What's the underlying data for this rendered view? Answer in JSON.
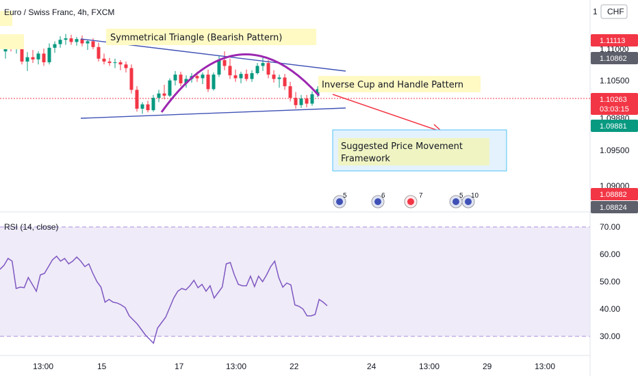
{
  "header": {
    "symbol_title": "Euro / Swiss Franc, 4h, FXCM"
  },
  "currency_button": "CHF",
  "annotations": {
    "triangle": "Symmetrical Triangle (Bearish Pattern)",
    "cup": "Inverse Cup and Handle Pattern",
    "suggested_line1": "Suggested Price Movement",
    "suggested_line2": "Framework"
  },
  "price_axis": {
    "ticks": [
      "1.10500",
      "1.09500"
    ],
    "clipped_labels": [
      "1.11000",
      "1.09000"
    ],
    "tags": [
      {
        "label": "1.11113",
        "color": "#f23645"
      },
      {
        "label": "1.10862",
        "color": "#5d606b"
      },
      {
        "label": "1.10263",
        "sub": "03:03:15",
        "color": "#f23645"
      },
      {
        "label": "1.09881",
        "color": "#089981"
      },
      {
        "label": "1.08882",
        "color": "#f23645"
      },
      {
        "label": "1.08824",
        "color": "#5d606b"
      }
    ]
  },
  "rsi": {
    "title": "RSI (14, close)",
    "ticks": [
      "70.00",
      "60.00",
      "50.00",
      "40.00",
      "30.00"
    ]
  },
  "time_axis": {
    "labels": [
      "13:00",
      "15",
      "17",
      "13:00",
      "22",
      "24",
      "13:00",
      "29",
      "13:00"
    ]
  },
  "events": [
    "5",
    "6",
    "7",
    "5",
    "10"
  ],
  "colors": {
    "up": "#089981",
    "down": "#f23645",
    "rsi_line": "#7e57c2",
    "pattern_line": "#3f51b5",
    "cup": "#9c27b0",
    "arrow": "#f23645"
  },
  "chart_data": {
    "type": "candlestick",
    "title": "Euro / Swiss Franc, 4h, FXCM",
    "ylim": [
      1.0885,
      1.113
    ],
    "candles": [
      {
        "o": 1.1078,
        "h": 1.1093,
        "l": 1.1068,
        "c": 1.1087
      },
      {
        "o": 1.1087,
        "h": 1.1097,
        "l": 1.1078,
        "c": 1.1082
      },
      {
        "o": 1.1082,
        "h": 1.1093,
        "l": 1.1075,
        "c": 1.1089
      },
      {
        "o": 1.1089,
        "h": 1.1096,
        "l": 1.106,
        "c": 1.1064
      },
      {
        "o": 1.1064,
        "h": 1.1077,
        "l": 1.1051,
        "c": 1.107
      },
      {
        "o": 1.107,
        "h": 1.108,
        "l": 1.1062,
        "c": 1.1067
      },
      {
        "o": 1.1067,
        "h": 1.1078,
        "l": 1.106,
        "c": 1.1075
      },
      {
        "o": 1.1075,
        "h": 1.1082,
        "l": 1.1058,
        "c": 1.1063
      },
      {
        "o": 1.1063,
        "h": 1.1089,
        "l": 1.106,
        "c": 1.1083
      },
      {
        "o": 1.1083,
        "h": 1.1092,
        "l": 1.1076,
        "c": 1.1088
      },
      {
        "o": 1.1088,
        "h": 1.1099,
        "l": 1.1083,
        "c": 1.1094
      },
      {
        "o": 1.1094,
        "h": 1.1102,
        "l": 1.1087,
        "c": 1.1096
      },
      {
        "o": 1.1096,
        "h": 1.1101,
        "l": 1.1087,
        "c": 1.1091
      },
      {
        "o": 1.1091,
        "h": 1.1098,
        "l": 1.1086,
        "c": 1.1095
      },
      {
        "o": 1.1095,
        "h": 1.11,
        "l": 1.1085,
        "c": 1.1089
      },
      {
        "o": 1.1089,
        "h": 1.1094,
        "l": 1.108,
        "c": 1.1092
      },
      {
        "o": 1.1092,
        "h": 1.1096,
        "l": 1.1081,
        "c": 1.1084
      },
      {
        "o": 1.1084,
        "h": 1.109,
        "l": 1.1064,
        "c": 1.1068
      },
      {
        "o": 1.1068,
        "h": 1.1075,
        "l": 1.106,
        "c": 1.1064
      },
      {
        "o": 1.1064,
        "h": 1.1069,
        "l": 1.1058,
        "c": 1.1062
      },
      {
        "o": 1.1062,
        "h": 1.1068,
        "l": 1.1055,
        "c": 1.1063
      },
      {
        "o": 1.1063,
        "h": 1.1066,
        "l": 1.1052,
        "c": 1.106
      },
      {
        "o": 1.106,
        "h": 1.1064,
        "l": 1.1049,
        "c": 1.1055
      },
      {
        "o": 1.1055,
        "h": 1.106,
        "l": 1.102,
        "c": 1.1025
      },
      {
        "o": 1.1025,
        "h": 1.103,
        "l": 1.0995,
        "c": 1.0999
      },
      {
        "o": 1.0999,
        "h": 1.1008,
        "l": 1.0992,
        "c": 1.1005
      },
      {
        "o": 1.1005,
        "h": 1.101,
        "l": 1.0994,
        "c": 1.0997
      },
      {
        "o": 1.0997,
        "h": 1.1018,
        "l": 1.0995,
        "c": 1.1014
      },
      {
        "o": 1.1014,
        "h": 1.1025,
        "l": 1.1008,
        "c": 1.102
      },
      {
        "o": 1.102,
        "h": 1.1032,
        "l": 1.1012,
        "c": 1.1017
      },
      {
        "o": 1.1017,
        "h": 1.1041,
        "l": 1.1015,
        "c": 1.1038
      },
      {
        "o": 1.1038,
        "h": 1.1051,
        "l": 1.1031,
        "c": 1.1046
      },
      {
        "o": 1.1046,
        "h": 1.105,
        "l": 1.103,
        "c": 1.1034
      },
      {
        "o": 1.1034,
        "h": 1.1045,
        "l": 1.1028,
        "c": 1.104
      },
      {
        "o": 1.104,
        "h": 1.1048,
        "l": 1.1035,
        "c": 1.1044
      },
      {
        "o": 1.1044,
        "h": 1.105,
        "l": 1.1036,
        "c": 1.1041
      },
      {
        "o": 1.1041,
        "h": 1.1049,
        "l": 1.1033,
        "c": 1.1046
      },
      {
        "o": 1.1046,
        "h": 1.1053,
        "l": 1.1022,
        "c": 1.1026
      },
      {
        "o": 1.1026,
        "h": 1.1049,
        "l": 1.1024,
        "c": 1.1046
      },
      {
        "o": 1.1046,
        "h": 1.1072,
        "l": 1.1043,
        "c": 1.1066
      },
      {
        "o": 1.1066,
        "h": 1.1078,
        "l": 1.1052,
        "c": 1.1058
      },
      {
        "o": 1.1058,
        "h": 1.1068,
        "l": 1.104,
        "c": 1.1045
      },
      {
        "o": 1.1045,
        "h": 1.1053,
        "l": 1.1036,
        "c": 1.1041
      },
      {
        "o": 1.1041,
        "h": 1.105,
        "l": 1.1034,
        "c": 1.1047
      },
      {
        "o": 1.1047,
        "h": 1.1053,
        "l": 1.1037,
        "c": 1.104
      },
      {
        "o": 1.104,
        "h": 1.1052,
        "l": 1.1036,
        "c": 1.1048
      },
      {
        "o": 1.1048,
        "h": 1.1062,
        "l": 1.1046,
        "c": 1.1058
      },
      {
        "o": 1.1058,
        "h": 1.107,
        "l": 1.1051,
        "c": 1.1062
      },
      {
        "o": 1.1062,
        "h": 1.1066,
        "l": 1.1041,
        "c": 1.1046
      },
      {
        "o": 1.1046,
        "h": 1.1052,
        "l": 1.1035,
        "c": 1.104
      },
      {
        "o": 1.104,
        "h": 1.1046,
        "l": 1.1028,
        "c": 1.1042
      },
      {
        "o": 1.1042,
        "h": 1.1047,
        "l": 1.1025,
        "c": 1.103
      },
      {
        "o": 1.103,
        "h": 1.1036,
        "l": 1.1009,
        "c": 1.1014
      },
      {
        "o": 1.1014,
        "h": 1.1022,
        "l": 1.0999,
        "c": 1.1004
      },
      {
        "o": 1.1004,
        "h": 1.1018,
        "l": 1.1,
        "c": 1.1013
      },
      {
        "o": 1.1013,
        "h": 1.1018,
        "l": 1.1001,
        "c": 1.1006
      },
      {
        "o": 1.1006,
        "h": 1.1023,
        "l": 1.1003,
        "c": 1.1019
      },
      {
        "o": 1.1019,
        "h": 1.103,
        "l": 1.1015,
        "c": 1.1026
      }
    ],
    "rsi": {
      "ylim": [
        25,
        75
      ],
      "upper_band": 70,
      "lower_band": 30,
      "values": [
        54.5,
        56,
        58.5,
        57.5,
        47.5,
        48,
        47.8,
        51.5,
        49,
        46.5,
        52.5,
        53,
        55.5,
        58,
        59.3,
        57.5,
        58.5,
        56.5,
        57.5,
        59,
        57.5,
        55.5,
        56.5,
        53,
        50,
        48,
        42.5,
        43.5,
        42.5,
        42.2,
        41.5,
        40.5,
        37.5,
        36,
        34.5,
        32.5,
        30.5,
        29,
        27.5,
        33,
        35,
        37,
        40.5,
        44,
        46.5,
        47.5,
        47,
        48.5,
        50.5,
        47.8,
        49,
        46.5,
        48.5,
        44,
        46,
        48,
        56.5,
        57,
        52.5,
        49,
        48.5,
        48.5,
        52,
        48.2,
        52,
        50,
        52.5,
        55.5,
        57.5,
        51.5,
        48,
        49.5,
        48.8,
        41.5,
        41,
        40,
        37.5,
        37.5,
        38,
        43.5,
        42.5,
        41.2
      ]
    }
  }
}
